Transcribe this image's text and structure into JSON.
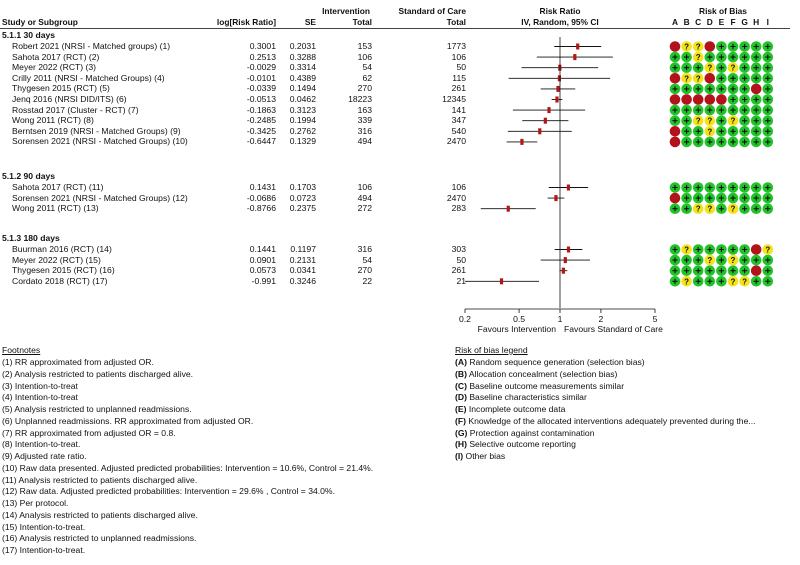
{
  "header": {
    "study": "Study or Subgroup",
    "logrr": "log[Risk Ratio]",
    "se": "SE",
    "int_top": "Intervention",
    "int_total": "Total",
    "soc_top": "Standard of Care",
    "soc_total": "Total",
    "rr_top": "Risk Ratio",
    "rr_sub": "IV, Random, 95% CI",
    "rob_top": "Risk of Bias",
    "rob_cols": [
      "A",
      "B",
      "C",
      "D",
      "E",
      "F",
      "G",
      "H",
      "I"
    ]
  },
  "chart_data": {
    "type": "forest",
    "x_axis": {
      "scale": "log",
      "ticks": [
        0.2,
        0.5,
        1,
        2,
        5
      ],
      "tick_labels": [
        "0.2",
        "0.5",
        "1",
        "2",
        "5"
      ],
      "left_label": "Favours Intervention",
      "right_label": "Favours Standard of Care"
    },
    "subgroups": [
      {
        "title": "5.1.1 30 days",
        "studies": [
          {
            "name": "Robert 2021 (NRSI - Matched groups) (1)",
            "logrr": "0.3001",
            "se": "0.2031",
            "int_total": "153",
            "soc_total": "1773",
            "rob": [
              "r",
              "q",
              "q",
              "r",
              "g",
              "g",
              "g",
              "g",
              "g"
            ]
          },
          {
            "name": "Sahota 2017 (RCT) (2)",
            "logrr": "0.2513",
            "se": "0.3288",
            "int_total": "106",
            "soc_total": "106",
            "rob": [
              "g",
              "g",
              "q",
              "g",
              "g",
              "g",
              "g",
              "g",
              "g"
            ]
          },
          {
            "name": "Meyer 2022 (RCT) (3)",
            "logrr": "-0.0029",
            "se": "0.3314",
            "int_total": "54",
            "soc_total": "50",
            "rob": [
              "g",
              "g",
              "g",
              "q",
              "g",
              "q",
              "g",
              "g",
              "g"
            ]
          },
          {
            "name": "Crilly 2011 (NRSI - Matched Groups) (4)",
            "logrr": "-0.0101",
            "se": "0.4389",
            "int_total": "62",
            "soc_total": "115",
            "rob": [
              "r",
              "q",
              "q",
              "r",
              "g",
              "g",
              "g",
              "g",
              "g"
            ]
          },
          {
            "name": "Thygesen 2015 (RCT) (5)",
            "logrr": "-0.0339",
            "se": "0.1494",
            "int_total": "270",
            "soc_total": "261",
            "rob": [
              "g",
              "g",
              "g",
              "g",
              "g",
              "g",
              "g",
              "r",
              "g"
            ]
          },
          {
            "name": "Jenq 2016 (NRSI DID/ITS) (6)",
            "logrr": "-0.0513",
            "se": "0.0462",
            "int_total": "18223",
            "soc_total": "12345",
            "rob": [
              "r",
              "r",
              "r",
              "r",
              "r",
              "g",
              "g",
              "g",
              "g"
            ]
          },
          {
            "name": "Rosstad 2017 (Cluster - RCT) (7)",
            "logrr": "-0.1863",
            "se": "0.3123",
            "int_total": "163",
            "soc_total": "141",
            "rob": [
              "g",
              "g",
              "g",
              "g",
              "g",
              "g",
              "g",
              "g",
              "g"
            ]
          },
          {
            "name": "Wong 2011 (RCT) (8)",
            "logrr": "-0.2485",
            "se": "0.1994",
            "int_total": "339",
            "soc_total": "347",
            "rob": [
              "g",
              "g",
              "q",
              "q",
              "g",
              "q",
              "g",
              "g",
              "g"
            ]
          },
          {
            "name": "Berntsen 2019 (NRSI - Matched Groups) (9)",
            "logrr": "-0.3425",
            "se": "0.2762",
            "int_total": "316",
            "soc_total": "540",
            "rob": [
              "r",
              "g",
              "g",
              "q",
              "g",
              "g",
              "g",
              "g",
              "g"
            ]
          },
          {
            "name": "Sorensen 2021 (NRSI - Matched Groups) (10)",
            "logrr": "-0.6447",
            "se": "0.1329",
            "int_total": "494",
            "soc_total": "2470",
            "rob": [
              "r",
              "g",
              "g",
              "g",
              "g",
              "g",
              "g",
              "g",
              "g"
            ]
          }
        ]
      },
      {
        "title": "5.1.2 90 days",
        "studies": [
          {
            "name": "Sahota 2017 (RCT) (11)",
            "logrr": "0.1431",
            "se": "0.1703",
            "int_total": "106",
            "soc_total": "106",
            "rob": [
              "g",
              "g",
              "g",
              "g",
              "g",
              "g",
              "g",
              "g",
              "g"
            ]
          },
          {
            "name": "Sorensen 2021 (NRSI - Matched Groups) (12)",
            "logrr": "-0.0686",
            "se": "0.0723",
            "int_total": "494",
            "soc_total": "2470",
            "rob": [
              "r",
              "g",
              "g",
              "g",
              "g",
              "g",
              "g",
              "g",
              "g"
            ]
          },
          {
            "name": "Wong 2011 (RCT) (13)",
            "logrr": "-0.8766",
            "se": "0.2375",
            "int_total": "272",
            "soc_total": "283",
            "rob": [
              "g",
              "g",
              "q",
              "q",
              "g",
              "q",
              "g",
              "g",
              "g"
            ]
          }
        ]
      },
      {
        "title": "5.1.3 180 days",
        "studies": [
          {
            "name": "Buurman 2016 (RCT) (14)",
            "logrr": "0.1441",
            "se": "0.1197",
            "int_total": "316",
            "soc_total": "303",
            "rob": [
              "g",
              "q",
              "g",
              "g",
              "g",
              "g",
              "g",
              "r",
              "q"
            ]
          },
          {
            "name": "Meyer 2022 (RCT) (15)",
            "logrr": "0.0901",
            "se": "0.2131",
            "int_total": "54",
            "soc_total": "50",
            "rob": [
              "g",
              "g",
              "g",
              "q",
              "g",
              "q",
              "g",
              "g",
              "g"
            ]
          },
          {
            "name": "Thygesen 2015 (RCT) (16)",
            "logrr": "0.0573",
            "se": "0.0341",
            "int_total": "270",
            "soc_total": "261",
            "rob": [
              "g",
              "g",
              "g",
              "g",
              "g",
              "g",
              "g",
              "r",
              "g"
            ]
          },
          {
            "name": "Cordato 2018 (RCT) (17)",
            "logrr": "-0.991",
            "se": "0.3246",
            "int_total": "22",
            "soc_total": "21",
            "rob": [
              "g",
              "q",
              "g",
              "g",
              "g",
              "q",
              "q",
              "g",
              "g"
            ]
          }
        ]
      }
    ]
  },
  "colors": {
    "green": "#22c32a",
    "yellow": "#f4e21b",
    "red": "#b3121b",
    "point": "#b01717",
    "line": "#111111"
  },
  "footnotes": {
    "title": "Footnotes",
    "items": [
      "(1) RR approximated from adjusted OR.",
      "(2) Analysis restricted to patients discharged alive.",
      "(3) Intention-to-treat",
      "(4) Intention-to-treat",
      "(5) Analysis restricted to unplanned readmissions.",
      "(6) Unplanned readmissions. RR approximated from adjusted OR.",
      "(7) RR approximated from adjusted OR = 0.8.",
      "(8) Intention-to-treat.",
      "(9) Adjusted rate ratio.",
      "(10) Raw data presented. Adjusted predicted probabilities: Intervention = 10.6%, Control = 21.4%.",
      "(11) Analysis restricted to patients discharged alive.",
      "(12) Raw data. Adjusted predicted probabilities: Intervention = 29.6% , Control = 34.0%.",
      "(13) Per protocol.",
      "(14) Analysis restricted to patients discharged alive.",
      "(15) Intention-to-treat.",
      "(16) Analysis restricted to unplanned readmissions.",
      "(17) Intention-to-treat."
    ]
  },
  "rob_legend": {
    "title": "Risk of bias legend",
    "items": [
      {
        "key": "(A)",
        "text": "Random sequence generation (selection bias)"
      },
      {
        "key": "(B)",
        "text": "Allocation concealment (selection bias)"
      },
      {
        "key": "(C)",
        "text": "Baseline outcome measurements similar"
      },
      {
        "key": "(D)",
        "text": "Baseline characteristics similar"
      },
      {
        "key": "(E)",
        "text": "Incomplete outcome data"
      },
      {
        "key": "(F)",
        "text": "Knowledge of the allocated interventions adequately prevented during the..."
      },
      {
        "key": "(G)",
        "text": "Protection against contamination"
      },
      {
        "key": "(H)",
        "text": "Selective outcome reporting"
      },
      {
        "key": "(I)",
        "text": "Other bias"
      }
    ]
  }
}
